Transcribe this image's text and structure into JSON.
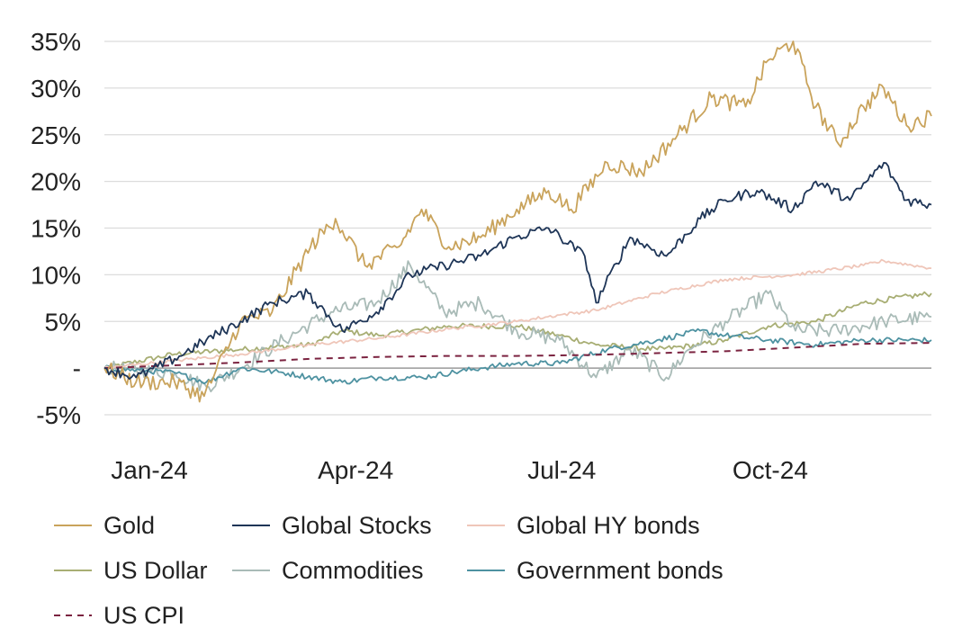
{
  "chart_data": {
    "type": "line",
    "title": "",
    "xlabel": "",
    "ylabel": "",
    "ylim": [
      -5,
      35
    ],
    "yticks": [
      {
        "value": 35,
        "label": "35%"
      },
      {
        "value": 30,
        "label": "30%"
      },
      {
        "value": 25,
        "label": "25%"
      },
      {
        "value": 20,
        "label": "20%"
      },
      {
        "value": 15,
        "label": "15%"
      },
      {
        "value": 10,
        "label": "10%"
      },
      {
        "value": 5,
        "label": "5%"
      },
      {
        "value": 0,
        "label": "-"
      },
      {
        "value": -5,
        "label": "-5%"
      }
    ],
    "xticks": [
      "Jan-24",
      "Apr-24",
      "Jul-24",
      "Oct-24"
    ],
    "x_tick_positions": [
      "2024-01-01",
      "2024-04-01",
      "2024-07-01",
      "2024-10-01"
    ],
    "x_range": [
      "2024-01-01",
      "2024-12-31"
    ],
    "grid": "horizontal",
    "legend_position": "bottom",
    "series": [
      {
        "name": "Gold",
        "color": "#C9A35B",
        "dash": false,
        "points": [
          [
            "2024-01-01",
            0
          ],
          [
            "2024-01-15",
            -1.5
          ],
          [
            "2024-02-01",
            -1.5
          ],
          [
            "2024-02-14",
            -3
          ],
          [
            "2024-03-01",
            5
          ],
          [
            "2024-03-15",
            6
          ],
          [
            "2024-04-01",
            13
          ],
          [
            "2024-04-12",
            16
          ],
          [
            "2024-04-25",
            11
          ],
          [
            "2024-05-10",
            13
          ],
          [
            "2024-05-20",
            17
          ],
          [
            "2024-06-01",
            13
          ],
          [
            "2024-06-15",
            14
          ],
          [
            "2024-07-01",
            17
          ],
          [
            "2024-07-15",
            19
          ],
          [
            "2024-07-25",
            17
          ],
          [
            "2024-08-10",
            22
          ],
          [
            "2024-08-25",
            21
          ],
          [
            "2024-09-10",
            25
          ],
          [
            "2024-09-25",
            29
          ],
          [
            "2024-10-10",
            28
          ],
          [
            "2024-10-20",
            33
          ],
          [
            "2024-10-31",
            35
          ],
          [
            "2024-11-10",
            28
          ],
          [
            "2024-11-20",
            24
          ],
          [
            "2024-12-01",
            28
          ],
          [
            "2024-12-10",
            30
          ],
          [
            "2024-12-20",
            26
          ],
          [
            "2024-12-31",
            27
          ]
        ]
      },
      {
        "name": "Global Stocks",
        "color": "#1E3557",
        "dash": false,
        "points": [
          [
            "2024-01-01",
            0
          ],
          [
            "2024-01-15",
            -1
          ],
          [
            "2024-02-01",
            1
          ],
          [
            "2024-02-15",
            3
          ],
          [
            "2024-03-01",
            5
          ],
          [
            "2024-03-15",
            7
          ],
          [
            "2024-03-31",
            8
          ],
          [
            "2024-04-15",
            4
          ],
          [
            "2024-04-30",
            6
          ],
          [
            "2024-05-15",
            10
          ],
          [
            "2024-05-30",
            11
          ],
          [
            "2024-06-15",
            12
          ],
          [
            "2024-06-30",
            14
          ],
          [
            "2024-07-15",
            15
          ],
          [
            "2024-07-31",
            12
          ],
          [
            "2024-08-05",
            7
          ],
          [
            "2024-08-20",
            14
          ],
          [
            "2024-09-05",
            12
          ],
          [
            "2024-09-20",
            16
          ],
          [
            "2024-10-01",
            18
          ],
          [
            "2024-10-15",
            19
          ],
          [
            "2024-10-31",
            17
          ],
          [
            "2024-11-10",
            20
          ],
          [
            "2024-11-25",
            18
          ],
          [
            "2024-12-10",
            22
          ],
          [
            "2024-12-20",
            18
          ],
          [
            "2024-12-31",
            17.5
          ]
        ]
      },
      {
        "name": "Global HY bonds",
        "color": "#EFC6B9",
        "dash": false,
        "points": [
          [
            "2024-01-01",
            0
          ],
          [
            "2024-02-01",
            0.8
          ],
          [
            "2024-03-01",
            1.5
          ],
          [
            "2024-04-01",
            2.5
          ],
          [
            "2024-05-01",
            3.2
          ],
          [
            "2024-06-01",
            4.2
          ],
          [
            "2024-07-01",
            5
          ],
          [
            "2024-07-20",
            5.7
          ],
          [
            "2024-08-05",
            6.2
          ],
          [
            "2024-09-01",
            8
          ],
          [
            "2024-10-01",
            9.5
          ],
          [
            "2024-11-01",
            10
          ],
          [
            "2024-12-01",
            11
          ],
          [
            "2024-12-10",
            11.5
          ],
          [
            "2024-12-31",
            10.7
          ]
        ]
      },
      {
        "name": "US Dollar",
        "color": "#A8AE74",
        "dash": false,
        "points": [
          [
            "2024-01-01",
            0
          ],
          [
            "2024-02-01",
            1.5
          ],
          [
            "2024-03-01",
            2
          ],
          [
            "2024-04-01",
            2.5
          ],
          [
            "2024-04-15",
            4
          ],
          [
            "2024-05-01",
            3.5
          ],
          [
            "2024-06-01",
            4.5
          ],
          [
            "2024-07-01",
            4.5
          ],
          [
            "2024-07-20",
            3.5
          ],
          [
            "2024-08-05",
            2.5
          ],
          [
            "2024-09-01",
            2
          ],
          [
            "2024-09-20",
            2.5
          ],
          [
            "2024-10-01",
            3
          ],
          [
            "2024-10-20",
            4.5
          ],
          [
            "2024-11-10",
            5
          ],
          [
            "2024-12-01",
            7
          ],
          [
            "2024-12-31",
            8
          ]
        ]
      },
      {
        "name": "Commodities",
        "color": "#A9BBB7",
        "dash": false,
        "points": [
          [
            "2024-01-01",
            0
          ],
          [
            "2024-02-01",
            -0.5
          ],
          [
            "2024-02-15",
            -2
          ],
          [
            "2024-03-01",
            0
          ],
          [
            "2024-03-20",
            3
          ],
          [
            "2024-04-10",
            6
          ],
          [
            "2024-04-30",
            7
          ],
          [
            "2024-05-15",
            11
          ],
          [
            "2024-05-30",
            6
          ],
          [
            "2024-06-15",
            7
          ],
          [
            "2024-07-01",
            4
          ],
          [
            "2024-07-20",
            3
          ],
          [
            "2024-08-05",
            -1
          ],
          [
            "2024-08-20",
            2
          ],
          [
            "2024-09-05",
            -1
          ],
          [
            "2024-09-15",
            2
          ],
          [
            "2024-10-01",
            5
          ],
          [
            "2024-10-20",
            8
          ],
          [
            "2024-11-01",
            4
          ],
          [
            "2024-11-20",
            4
          ],
          [
            "2024-12-10",
            5
          ],
          [
            "2024-12-31",
            5.5
          ]
        ]
      },
      {
        "name": "Government bonds",
        "color": "#4E92A1",
        "dash": false,
        "points": [
          [
            "2024-01-01",
            0
          ],
          [
            "2024-02-01",
            -0.5
          ],
          [
            "2024-02-15",
            -1.5
          ],
          [
            "2024-03-01",
            0
          ],
          [
            "2024-03-20",
            -0.5
          ],
          [
            "2024-04-15",
            -1.5
          ],
          [
            "2024-05-01",
            -1
          ],
          [
            "2024-05-20",
            -1
          ],
          [
            "2024-06-15",
            0
          ],
          [
            "2024-07-01",
            0.5
          ],
          [
            "2024-07-20",
            0.5
          ],
          [
            "2024-08-10",
            2
          ],
          [
            "2024-09-01",
            3
          ],
          [
            "2024-09-20",
            4
          ],
          [
            "2024-10-01",
            3.5
          ],
          [
            "2024-10-20",
            3
          ],
          [
            "2024-11-10",
            2.5
          ],
          [
            "2024-12-01",
            3
          ],
          [
            "2024-12-31",
            3
          ]
        ]
      },
      {
        "name": "US CPI",
        "color": "#7B2340",
        "dash": true,
        "points": [
          [
            "2024-01-01",
            0
          ],
          [
            "2024-02-01",
            0.3
          ],
          [
            "2024-03-01",
            0.6
          ],
          [
            "2024-04-01",
            1
          ],
          [
            "2024-05-01",
            1.2
          ],
          [
            "2024-06-01",
            1.3
          ],
          [
            "2024-07-01",
            1.3
          ],
          [
            "2024-08-01",
            1.4
          ],
          [
            "2024-09-01",
            1.6
          ],
          [
            "2024-10-01",
            1.8
          ],
          [
            "2024-11-01",
            2.2
          ],
          [
            "2024-12-01",
            2.6
          ],
          [
            "2024-12-31",
            2.7
          ]
        ]
      }
    ]
  }
}
